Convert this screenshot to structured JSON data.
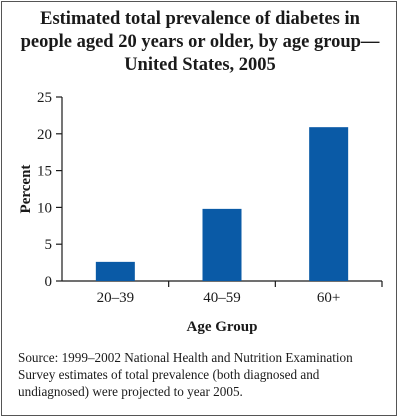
{
  "chart_data": {
    "type": "bar",
    "title": "Estimated total prevalence of diabetes in people aged 20 years or older, by age group—United States, 2005",
    "title_lines": [
      "Estimated total prevalence of diabetes in",
      "people aged 20 years or older, by age group—",
      "United States, 2005"
    ],
    "categories": [
      "20–39",
      "40–59",
      "60+"
    ],
    "values": [
      2.6,
      9.8,
      20.9
    ],
    "xlabel": "Age Group",
    "ylabel": "Percent",
    "ylim": [
      0,
      25
    ],
    "yticks": [
      "0",
      "5",
      "10",
      "15",
      "20",
      "25"
    ],
    "grid": false,
    "bar_color": "#0a5aa6"
  },
  "source_note": "Source:  1999–2002 National Health and Nutrition Examination Survey estimates of total prevalence (both diagnosed and undiagnosed) were projected to year 2005."
}
